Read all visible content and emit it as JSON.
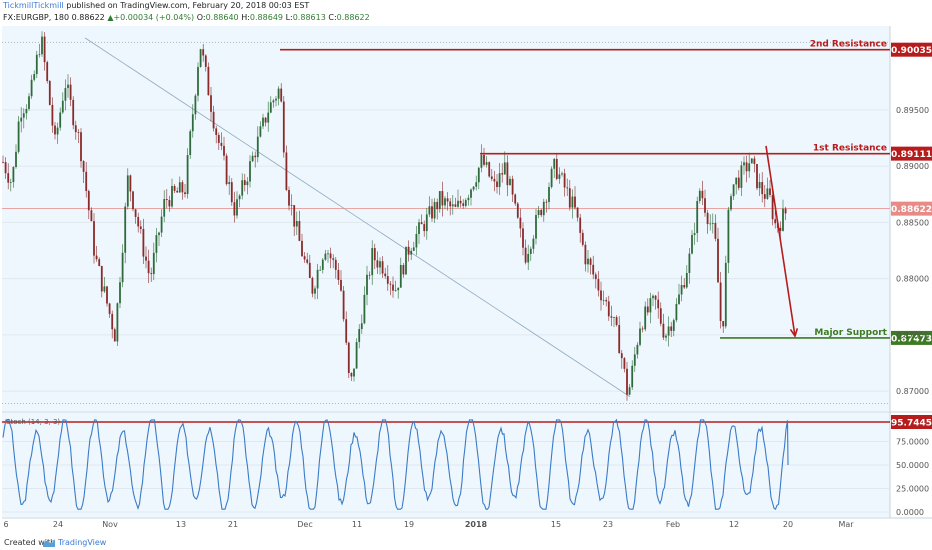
{
  "header": {
    "publisher": "TickmillTickmill",
    "published_text": "published on TradingView.com, February 20, 2018 00:03 EST",
    "symbol_line": "FX:EURGBP, 180",
    "price": "0.88622",
    "change": "+0.00034 (+0.04%)",
    "o_label": "O:",
    "o_value": "0.88640",
    "h_label": "H:",
    "h_value": "0.88649",
    "l_label": "L:",
    "l_value": "0.88613",
    "c_label": "C:",
    "c_value": "0.88622"
  },
  "footer": {
    "created_with": "Created with",
    "brand": "TradingView"
  },
  "colors": {
    "bg": "#eef7fd",
    "bull": "#2f6b3a",
    "bear": "#8a2a2a",
    "resistance": "#b71c1c",
    "support": "#3d7a23",
    "oscillator": "#3a7bc8",
    "current": "#e88a85",
    "trendline": "#8fa7be"
  },
  "chart_data": {
    "type": "candlestick",
    "symbol": "FX:EURGBP",
    "timeframe": "180",
    "ylim": [
      0.8685,
      0.9021
    ],
    "y_ticks": [
      0.87,
      0.875,
      0.88,
      0.885,
      0.89,
      0.895
    ],
    "x_ticks": [
      "6",
      "24",
      "Nov",
      "13",
      "21",
      "Dec",
      "11",
      "19",
      "2018",
      "15",
      "23",
      "Feb",
      "12",
      "20",
      "Mar"
    ],
    "price_path": [
      [
        0,
        0.891
      ],
      [
        12,
        0.8885
      ],
      [
        20,
        0.895
      ],
      [
        30,
        0.896
      ],
      [
        41,
        0.9015
      ],
      [
        55,
        0.892
      ],
      [
        65,
        0.8975
      ],
      [
        80,
        0.892
      ],
      [
        95,
        0.882
      ],
      [
        115,
        0.875
      ],
      [
        128,
        0.889
      ],
      [
        140,
        0.884
      ],
      [
        150,
        0.88
      ],
      [
        165,
        0.887
      ],
      [
        185,
        0.888
      ],
      [
        200,
        0.901
      ],
      [
        215,
        0.8935
      ],
      [
        235,
        0.886
      ],
      [
        250,
        0.89
      ],
      [
        268,
        0.895
      ],
      [
        280,
        0.897
      ],
      [
        287,
        0.888
      ],
      [
        300,
        0.883
      ],
      [
        312,
        0.879
      ],
      [
        325,
        0.883
      ],
      [
        340,
        0.88
      ],
      [
        350,
        0.87
      ],
      [
        360,
        0.876
      ],
      [
        372,
        0.882
      ],
      [
        385,
        0.881
      ],
      [
        395,
        0.879
      ],
      [
        410,
        0.883
      ],
      [
        425,
        0.885
      ],
      [
        440,
        0.887
      ],
      [
        455,
        0.886
      ],
      [
        470,
        0.888
      ],
      [
        482,
        0.8905
      ],
      [
        495,
        0.888
      ],
      [
        505,
        0.89
      ],
      [
        515,
        0.886
      ],
      [
        525,
        0.882
      ],
      [
        540,
        0.886
      ],
      [
        555,
        0.89
      ],
      [
        565,
        0.888
      ],
      [
        575,
        0.886
      ],
      [
        585,
        0.882
      ],
      [
        600,
        0.879
      ],
      [
        610,
        0.877
      ],
      [
        620,
        0.874
      ],
      [
        628,
        0.8695
      ],
      [
        640,
        0.876
      ],
      [
        655,
        0.878
      ],
      [
        665,
        0.875
      ],
      [
        675,
        0.877
      ],
      [
        690,
        0.882
      ],
      [
        700,
        0.888
      ],
      [
        715,
        0.8835
      ],
      [
        722,
        0.8745
      ],
      [
        730,
        0.888
      ],
      [
        740,
        0.889
      ],
      [
        750,
        0.8905
      ],
      [
        760,
        0.888
      ],
      [
        770,
        0.887
      ],
      [
        776,
        0.8845
      ],
      [
        788,
        0.8862
      ]
    ],
    "stochastic": {
      "label": "Stoch (14, 3, 3)",
      "ylim": [
        0,
        100
      ],
      "y_ticks": [
        "75.0000",
        "50.0000",
        "25.0000",
        "0.0000"
      ],
      "level_label": "95.7445",
      "level": 95.7445,
      "wave_period_px": 29,
      "last": 50
    },
    "trendline": {
      "from": [
        85,
        0.9014
      ],
      "to": [
        630,
        0.8695
      ]
    },
    "annotations": [
      {
        "label": "2nd Resistance",
        "value": "0.90035",
        "y": 0.90035,
        "x_from": 280
      },
      {
        "label": "1st Resistance",
        "value": "0.89111",
        "y": 0.89111,
        "x_from": 480
      },
      {
        "label": "Major Support",
        "value": "0.87473",
        "y": 0.87473,
        "x_from": 720
      }
    ],
    "current_price": {
      "value": "0.88622",
      "y": 0.88622
    },
    "arrow": {
      "from": [
        766,
        0.8918
      ],
      "to": [
        795,
        0.8749
      ]
    }
  }
}
